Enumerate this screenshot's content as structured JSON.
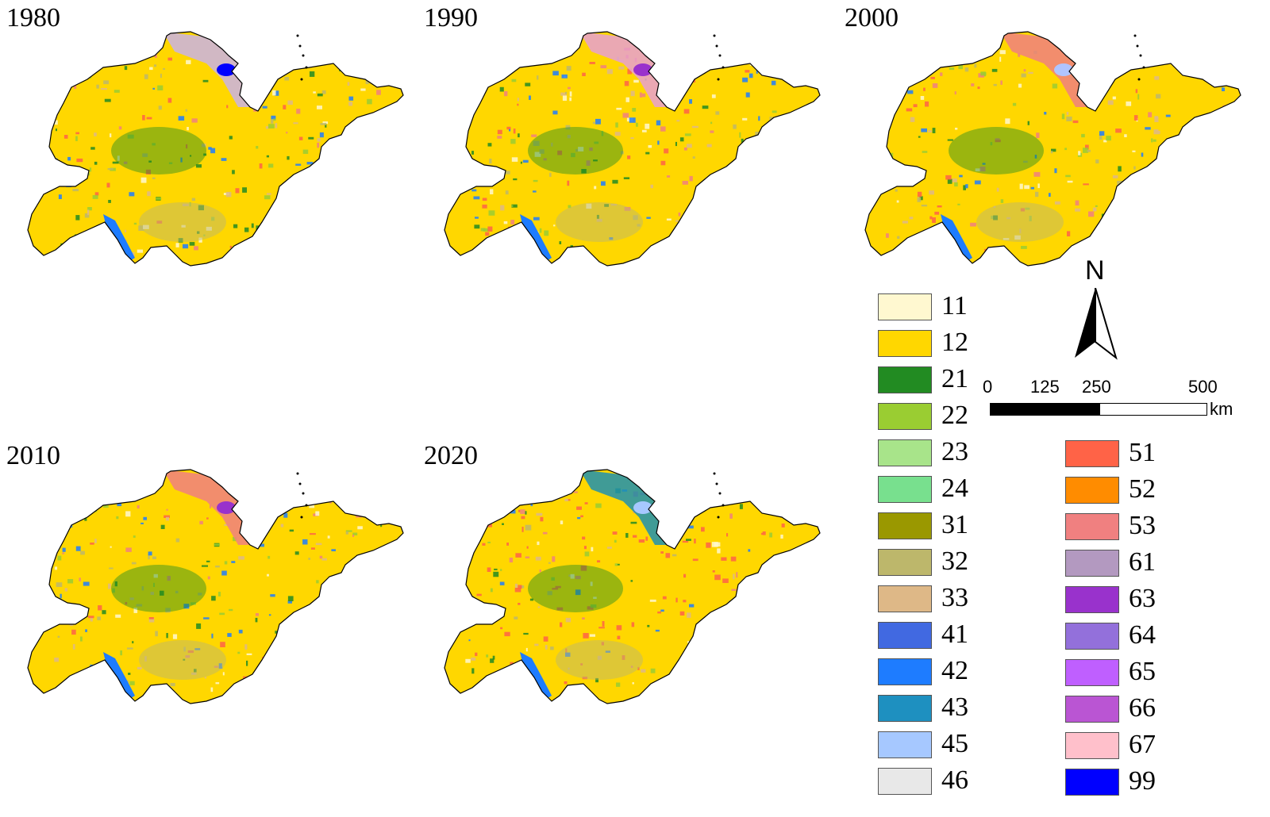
{
  "panels": [
    {
      "year": "1980",
      "coast": "#c9b3e6",
      "extra": "#0000ff"
    },
    {
      "year": "1990",
      "coast": "#e6a0d2",
      "extra": "#9932cc"
    },
    {
      "year": "2000",
      "coast": "#f08080",
      "extra": "#b0c4ff"
    },
    {
      "year": "2010",
      "coast": "#f08080",
      "extra": "#9932cc"
    },
    {
      "year": "2020",
      "coast": "#1e90b0",
      "extra": "#a6c8ff"
    }
  ],
  "legend_left": [
    {
      "code": "11",
      "color": "#fff8d0"
    },
    {
      "code": "12",
      "color": "#ffd700"
    },
    {
      "code": "21",
      "color": "#228b22"
    },
    {
      "code": "22",
      "color": "#9acd32"
    },
    {
      "code": "23",
      "color": "#a8e48a"
    },
    {
      "code": "24",
      "color": "#78e08e"
    },
    {
      "code": "31",
      "color": "#9a9800"
    },
    {
      "code": "32",
      "color": "#bdb76b"
    },
    {
      "code": "33",
      "color": "#deb887"
    },
    {
      "code": "41",
      "color": "#4169e1"
    },
    {
      "code": "42",
      "color": "#1e7cff"
    },
    {
      "code": "43",
      "color": "#1e90c0"
    },
    {
      "code": "45",
      "color": "#a6c8ff"
    },
    {
      "code": "46",
      "color": "#e8e8e8"
    }
  ],
  "legend_right": [
    {
      "code": "51",
      "color": "#ff6347"
    },
    {
      "code": "52",
      "color": "#ff8c00"
    },
    {
      "code": "53",
      "color": "#f08080"
    },
    {
      "code": "61",
      "color": "#b399c0"
    },
    {
      "code": "63",
      "color": "#9932cc"
    },
    {
      "code": "64",
      "color": "#9370db"
    },
    {
      "code": "65",
      "color": "#bf5fff"
    },
    {
      "code": "66",
      "color": "#ba55d3"
    },
    {
      "code": "67",
      "color": "#ffc0cb"
    },
    {
      "code": "99",
      "color": "#0000ff"
    }
  ],
  "north_arrow": {
    "label": "N"
  },
  "scale_bar": {
    "ticks": [
      "0",
      "125",
      "250",
      "500"
    ],
    "unit": "km"
  }
}
